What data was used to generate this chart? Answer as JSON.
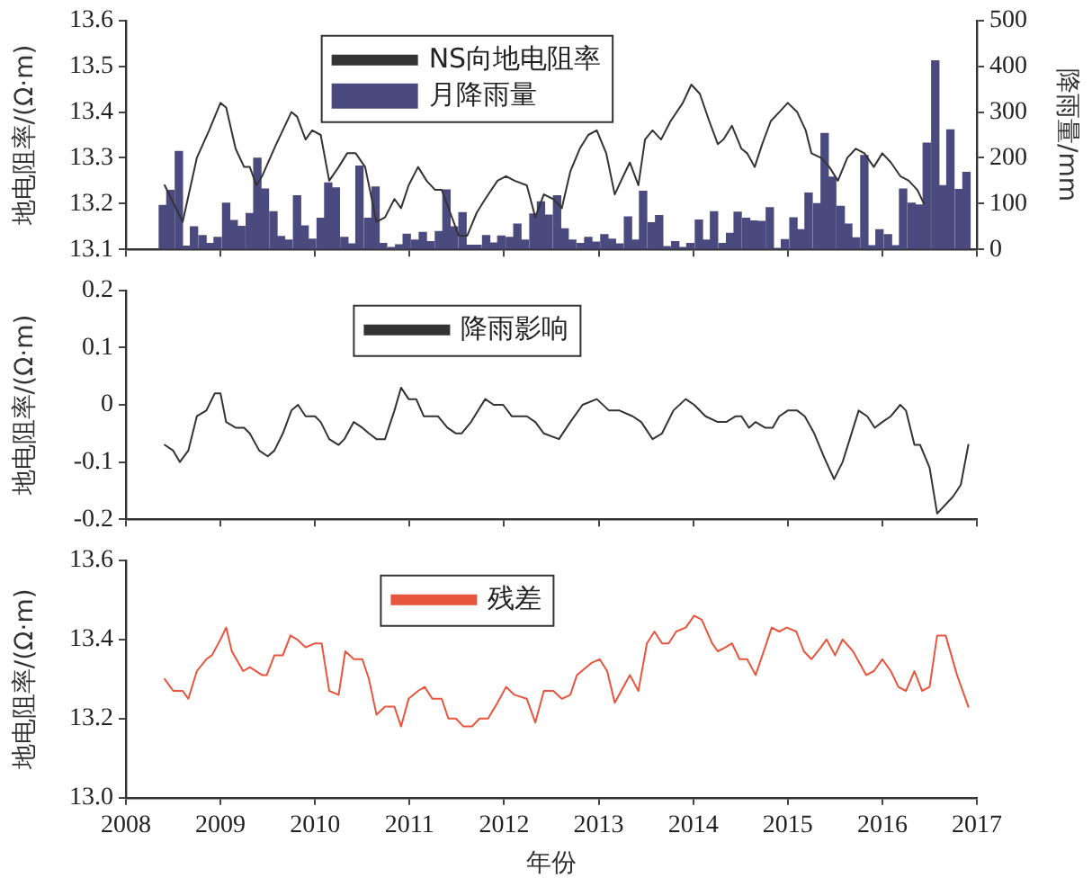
{
  "chart_data": [
    {
      "type": "bar",
      "ylabel": "地电阻率/(Ω·m)",
      "y2label": "降雨量/mm",
      "xlim": [
        2008,
        2017
      ],
      "xticks": [
        2008,
        2009,
        2010,
        2011,
        2012,
        2013,
        2014,
        2015,
        2016,
        2017
      ],
      "ylim": [
        13.1,
        13.6
      ],
      "yticks": [
        13.1,
        13.2,
        13.3,
        13.4,
        13.5,
        13.6
      ],
      "y2lim": [
        0,
        500
      ],
      "y2ticks": [
        0,
        100,
        200,
        300,
        400,
        500
      ],
      "tick_labels": "y",
      "legend": "top",
      "marker": "none",
      "series": [
        {
          "name": "NS向地电阻率",
          "type": "line",
          "color": "#333333",
          "x": [
            2008.41,
            2008.6,
            2008.75,
            2008.88,
            2009.0,
            2009.06,
            2009.16,
            2009.25,
            2009.31,
            2009.38,
            2009.44,
            2009.59,
            2009.75,
            2009.81,
            2009.9,
            2009.97,
            2010.06,
            2010.15,
            2010.25,
            2010.34,
            2010.43,
            2010.53,
            2010.65,
            2010.74,
            2010.84,
            2010.91,
            2010.99,
            2011.09,
            2011.18,
            2011.27,
            2011.34,
            2011.43,
            2011.52,
            2011.61,
            2011.71,
            2011.8,
            2011.93,
            2012.02,
            2012.11,
            2012.24,
            2012.33,
            2012.42,
            2012.52,
            2012.61,
            2012.7,
            2012.8,
            2012.89,
            2012.98,
            2013.08,
            2013.17,
            2013.26,
            2013.33,
            2013.42,
            2013.49,
            2013.57,
            2013.66,
            2013.76,
            2013.89,
            2013.98,
            2014.07,
            2014.17,
            2014.26,
            2014.32,
            2014.41,
            2014.51,
            2014.57,
            2014.65,
            2014.73,
            2014.82,
            2014.91,
            2015.0,
            2015.1,
            2015.19,
            2015.25,
            2015.35,
            2015.44,
            2015.53,
            2015.63,
            2015.72,
            2015.81,
            2015.91,
            2016.0,
            2016.09,
            2016.19,
            2016.28,
            2016.37,
            2016.44
          ],
          "values": [
            13.24,
            13.16,
            13.3,
            13.36,
            13.42,
            13.41,
            13.32,
            13.28,
            13.28,
            13.24,
            13.26,
            13.33,
            13.4,
            13.39,
            13.34,
            13.36,
            13.35,
            13.25,
            13.28,
            13.31,
            13.31,
            13.28,
            13.16,
            13.17,
            13.21,
            13.19,
            13.24,
            13.28,
            13.25,
            13.23,
            13.23,
            13.18,
            13.13,
            13.13,
            13.18,
            13.21,
            13.25,
            13.26,
            13.25,
            13.24,
            13.17,
            13.22,
            13.21,
            13.19,
            13.27,
            13.32,
            13.35,
            13.36,
            13.31,
            13.22,
            13.26,
            13.29,
            13.24,
            13.34,
            13.36,
            13.34,
            13.38,
            13.42,
            13.46,
            13.44,
            13.38,
            13.33,
            13.34,
            13.37,
            13.32,
            13.31,
            13.28,
            13.33,
            13.38,
            13.4,
            13.42,
            13.4,
            13.36,
            13.31,
            13.3,
            13.28,
            13.25,
            13.3,
            13.32,
            13.31,
            13.28,
            13.31,
            13.29,
            13.26,
            13.25,
            13.23,
            13.2
          ]
        },
        {
          "name": "月降雨量",
          "type": "bar",
          "axis": "y2",
          "color": "#4b4a7e",
          "x": [
            2008.39,
            2008.47,
            2008.56,
            2008.64,
            2008.72,
            2008.81,
            2008.89,
            2008.97,
            2009.06,
            2009.14,
            2009.22,
            2009.31,
            2009.39,
            2009.47,
            2009.56,
            2009.64,
            2009.72,
            2009.81,
            2009.89,
            2009.97,
            2010.06,
            2010.14,
            2010.22,
            2010.31,
            2010.39,
            2010.47,
            2010.56,
            2010.64,
            2010.72,
            2010.81,
            2010.89,
            2010.97,
            2011.06,
            2011.14,
            2011.22,
            2011.31,
            2011.39,
            2011.47,
            2011.56,
            2011.64,
            2011.72,
            2011.81,
            2011.89,
            2011.97,
            2012.06,
            2012.14,
            2012.22,
            2012.31,
            2012.39,
            2012.47,
            2012.56,
            2012.64,
            2012.72,
            2012.81,
            2012.89,
            2012.97,
            2013.06,
            2013.14,
            2013.22,
            2013.31,
            2013.39,
            2013.47,
            2013.56,
            2013.64,
            2013.72,
            2013.81,
            2013.89,
            2013.97,
            2014.06,
            2014.14,
            2014.22,
            2014.31,
            2014.39,
            2014.47,
            2014.56,
            2014.64,
            2014.72,
            2014.81,
            2014.89,
            2014.97,
            2015.06,
            2015.14,
            2015.22,
            2015.31,
            2015.39,
            2015.47,
            2015.56,
            2015.64,
            2015.72,
            2015.81,
            2015.89,
            2015.97,
            2016.06,
            2016.14,
            2016.22,
            2016.31,
            2016.39,
            2016.47,
            2016.56,
            2016.64,
            2016.72,
            2016.81,
            2016.89
          ],
          "values": [
            96,
            129,
            214,
            7,
            49,
            30,
            13,
            26,
            101,
            63,
            50,
            78,
            199,
            132,
            82,
            28,
            20,
            117,
            51,
            22,
            68,
            145,
            134,
            26,
            12,
            182,
            68,
            136,
            13,
            4,
            10,
            33,
            20,
            37,
            17,
            39,
            130,
            49,
            80,
            9,
            9,
            30,
            14,
            29,
            26,
            55,
            20,
            77,
            104,
            75,
            117,
            45,
            20,
            13,
            26,
            16,
            32,
            22,
            12,
            71,
            20,
            127,
            58,
            74,
            6,
            17,
            4,
            13,
            64,
            20,
            82,
            13,
            35,
            81,
            68,
            62,
            61,
            91,
            2,
            21,
            69,
            43,
            123,
            100,
            253,
            158,
            94,
            55,
            25,
            205,
            8,
            43,
            32,
            8,
            132,
            101,
            97,
            232,
            412,
            139,
            261,
            131,
            168
          ]
        }
      ]
    },
    {
      "type": "line",
      "ylabel": "地电阻率/(Ω·m)",
      "xlim": [
        2008,
        2017
      ],
      "xticks": [
        2008,
        2009,
        2010,
        2011,
        2012,
        2013,
        2014,
        2015,
        2016,
        2017
      ],
      "ylim": [
        -0.2,
        0.2
      ],
      "yticks": [
        -0.2,
        -0.1,
        0,
        0.1,
        0.2
      ],
      "tick_labels": "y",
      "legend": "top",
      "marker": "none",
      "series": [
        {
          "name": "降雨影响",
          "color": "#333333",
          "x": [
            2008.41,
            2008.5,
            2008.57,
            2008.66,
            2008.75,
            2008.85,
            2008.94,
            2009.0,
            2009.06,
            2009.16,
            2009.25,
            2009.31,
            2009.41,
            2009.5,
            2009.57,
            2009.66,
            2009.75,
            2009.82,
            2009.9,
            2010.0,
            2010.06,
            2010.15,
            2010.25,
            2010.31,
            2010.41,
            2010.5,
            2010.57,
            2010.65,
            2010.74,
            2010.84,
            2010.91,
            2010.99,
            2011.07,
            2011.15,
            2011.3,
            2011.4,
            2011.49,
            2011.55,
            2011.65,
            2011.8,
            2011.89,
            2011.99,
            2012.08,
            2012.17,
            2012.24,
            2012.33,
            2012.42,
            2012.58,
            2012.7,
            2012.83,
            2012.98,
            2013.11,
            2013.22,
            2013.36,
            2013.45,
            2013.57,
            2013.67,
            2013.79,
            2013.92,
            2014.01,
            2014.13,
            2014.26,
            2014.35,
            2014.45,
            2014.51,
            2014.59,
            2014.66,
            2014.76,
            2014.84,
            2014.91,
            2015.0,
            2015.1,
            2015.18,
            2015.28,
            2015.38,
            2015.49,
            2015.58,
            2015.75,
            2015.84,
            2015.92,
            2016.0,
            2016.09,
            2016.19,
            2016.25,
            2016.34,
            2016.4,
            2016.5,
            2016.58,
            2016.75,
            2016.83,
            2016.91
          ],
          "values": [
            -0.07,
            -0.08,
            -0.1,
            -0.08,
            -0.02,
            -0.01,
            0.02,
            0.02,
            -0.03,
            -0.04,
            -0.04,
            -0.05,
            -0.08,
            -0.09,
            -0.08,
            -0.05,
            -0.01,
            0.0,
            -0.02,
            -0.02,
            -0.03,
            -0.06,
            -0.07,
            -0.06,
            -0.03,
            -0.04,
            -0.05,
            -0.06,
            -0.06,
            -0.01,
            0.03,
            0.01,
            0.01,
            -0.02,
            -0.02,
            -0.04,
            -0.05,
            -0.05,
            -0.03,
            0.01,
            0.0,
            0.0,
            -0.02,
            -0.02,
            -0.02,
            -0.03,
            -0.05,
            -0.06,
            -0.03,
            0.0,
            0.01,
            -0.01,
            -0.01,
            -0.02,
            -0.03,
            -0.06,
            -0.05,
            -0.01,
            0.01,
            0.0,
            -0.02,
            -0.03,
            -0.03,
            -0.02,
            -0.02,
            -0.04,
            -0.03,
            -0.04,
            -0.04,
            -0.02,
            -0.01,
            -0.01,
            -0.02,
            -0.05,
            -0.09,
            -0.13,
            -0.1,
            -0.01,
            -0.02,
            -0.04,
            -0.03,
            -0.02,
            0.0,
            -0.01,
            -0.07,
            -0.07,
            -0.11,
            -0.19,
            -0.16,
            -0.14,
            -0.07
          ]
        }
      ]
    },
    {
      "type": "line",
      "ylabel": "地电阻率/(Ω·m)",
      "xlabel": "年份",
      "xlim": [
        2008,
        2017
      ],
      "xticks": [
        2008,
        2009,
        2010,
        2011,
        2012,
        2013,
        2014,
        2015,
        2016,
        2017
      ],
      "ylim": [
        13.0,
        13.6
      ],
      "yticks": [
        {
          "value": 13.0,
          "label": "13.0"
        },
        13.2,
        13.4,
        13.6
      ],
      "legend": "top",
      "marker": "none",
      "series": [
        {
          "name": "残差",
          "color": "#e8553f",
          "x": [
            2008.41,
            2008.5,
            2008.6,
            2008.66,
            2008.75,
            2008.85,
            2008.91,
            2009.0,
            2009.06,
            2009.12,
            2009.24,
            2009.31,
            2009.44,
            2009.49,
            2009.57,
            2009.66,
            2009.74,
            2009.81,
            2009.9,
            2010.0,
            2010.07,
            2010.15,
            2010.25,
            2010.32,
            2010.41,
            2010.5,
            2010.57,
            2010.65,
            2010.74,
            2010.84,
            2010.91,
            2010.99,
            2011.09,
            2011.16,
            2011.24,
            2011.34,
            2011.41,
            2011.49,
            2011.57,
            2011.66,
            2011.74,
            2011.83,
            2011.93,
            2012.02,
            2012.11,
            2012.24,
            2012.33,
            2012.42,
            2012.52,
            2012.61,
            2012.7,
            2012.77,
            2012.92,
            2013.01,
            2013.09,
            2013.17,
            2013.33,
            2013.42,
            2013.51,
            2013.59,
            2013.67,
            2013.74,
            2013.82,
            2013.92,
            2014.01,
            2014.09,
            2014.2,
            2014.26,
            2014.34,
            2014.41,
            2014.49,
            2014.57,
            2014.66,
            2014.76,
            2014.83,
            2014.91,
            2014.99,
            2015.09,
            2015.17,
            2015.25,
            2015.35,
            2015.41,
            2015.5,
            2015.58,
            2015.69,
            2015.83,
            2015.91,
            2016.0,
            2016.09,
            2016.17,
            2016.25,
            2016.34,
            2016.42,
            2016.5,
            2016.58,
            2016.67,
            2016.79,
            2016.91
          ],
          "values": [
            13.3,
            13.27,
            13.27,
            13.25,
            13.32,
            13.35,
            13.36,
            13.4,
            13.43,
            13.37,
            13.32,
            13.33,
            13.31,
            13.31,
            13.36,
            13.36,
            13.41,
            13.4,
            13.38,
            13.39,
            13.39,
            13.27,
            13.26,
            13.37,
            13.35,
            13.35,
            13.3,
            13.21,
            13.23,
            13.23,
            13.18,
            13.25,
            13.27,
            13.28,
            13.25,
            13.25,
            13.2,
            13.2,
            13.18,
            13.18,
            13.2,
            13.2,
            13.24,
            13.28,
            13.26,
            13.25,
            13.19,
            13.27,
            13.27,
            13.25,
            13.26,
            13.31,
            13.34,
            13.35,
            13.32,
            13.24,
            13.31,
            13.27,
            13.39,
            13.42,
            13.39,
            13.39,
            13.42,
            13.43,
            13.46,
            13.45,
            13.39,
            13.37,
            13.38,
            13.39,
            13.35,
            13.35,
            13.31,
            13.38,
            13.43,
            13.42,
            13.43,
            13.42,
            13.37,
            13.35,
            13.38,
            13.4,
            13.36,
            13.4,
            13.37,
            13.31,
            13.32,
            13.35,
            13.32,
            13.28,
            13.27,
            13.32,
            13.27,
            13.28,
            13.41,
            13.41,
            13.31,
            13.23
          ]
        }
      ]
    }
  ]
}
